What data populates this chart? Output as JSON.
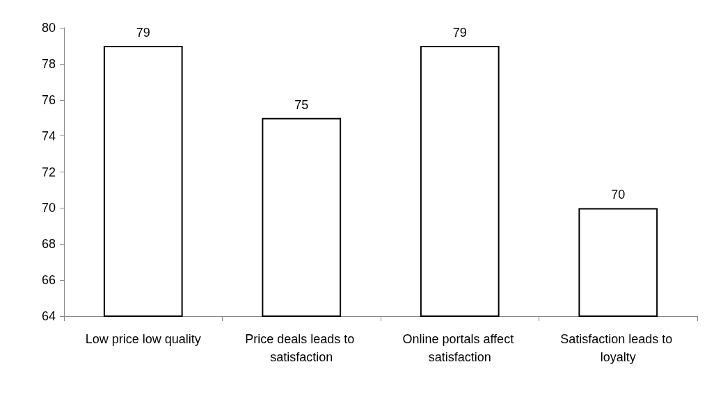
{
  "chart_data": {
    "type": "bar",
    "categories": [
      "Low price low quality",
      "Price deals leads to satisfaction",
      "Online portals affect satisfaction",
      "Satisfaction leads to loyalty"
    ],
    "values": [
      79,
      75,
      79,
      70
    ],
    "color": "#ffffff",
    "ylim": [
      64,
      80
    ],
    "yticks": [
      64,
      66,
      68,
      70,
      72,
      74,
      76,
      78,
      80
    ],
    "data_labels": true,
    "grid": false
  }
}
